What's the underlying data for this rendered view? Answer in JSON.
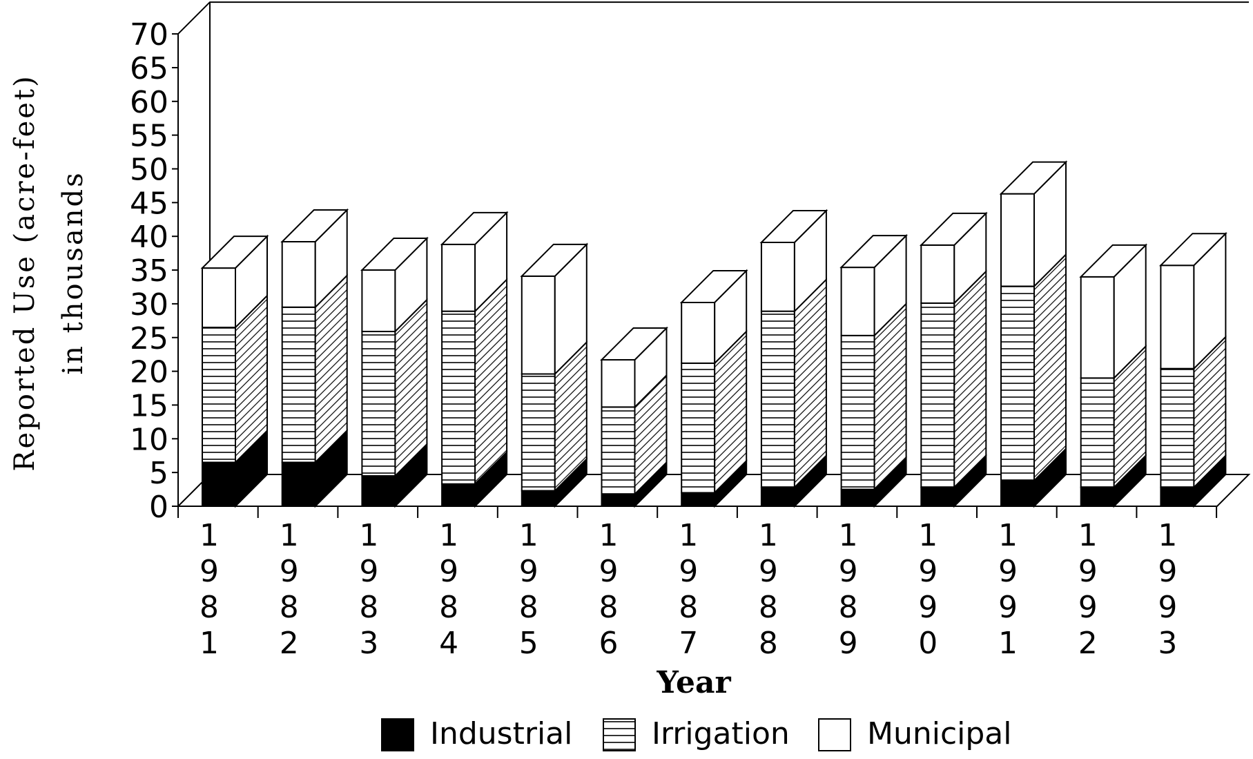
{
  "chart_data": {
    "type": "bar",
    "stacked": true,
    "three_d": true,
    "categories": [
      "1981",
      "1982",
      "1983",
      "1984",
      "1985",
      "1986",
      "1987",
      "1988",
      "1989",
      "1990",
      "1991",
      "1992",
      "1993"
    ],
    "series": [
      {
        "name": "Industrial",
        "fill": "solid",
        "values": [
          6.5,
          6.5,
          4.5,
          3.3,
          2.3,
          1.8,
          2.0,
          2.8,
          2.5,
          2.8,
          3.8,
          2.8,
          2.8
        ]
      },
      {
        "name": "Irrigation",
        "fill": "horizontal-lines",
        "values": [
          20.0,
          23.0,
          21.4,
          25.6,
          17.3,
          12.9,
          19.2,
          26.1,
          22.8,
          27.3,
          28.8,
          16.2,
          17.6
        ]
      },
      {
        "name": "Municipal",
        "fill": "white",
        "values": [
          8.8,
          9.7,
          9.1,
          9.9,
          14.5,
          7.0,
          9.0,
          10.2,
          10.1,
          8.6,
          13.7,
          15.0,
          15.3
        ]
      }
    ],
    "ylim": [
      0,
      70
    ],
    "yticks": [
      "0",
      "5",
      "10",
      "15",
      "20",
      "25",
      "30",
      "35",
      "40",
      "45",
      "50",
      "55",
      "60",
      "65",
      "70"
    ],
    "ylabel_line1": "Reported Use (acre-feet)",
    "ylabel_line2": "in thousands",
    "xlabel": "Year",
    "legend_position": "bottom",
    "grid": false
  }
}
